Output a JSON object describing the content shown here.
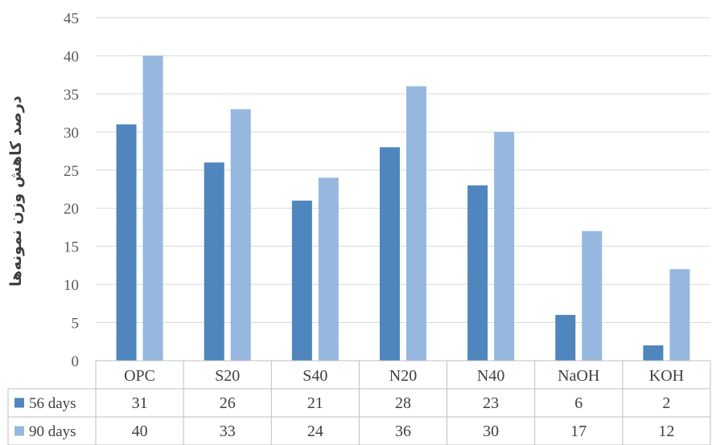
{
  "chart_data": {
    "type": "bar",
    "title": "",
    "xlabel": "",
    "ylabel": "درصد کاهش وزن نمونه‌ها",
    "ylim": [
      0,
      45
    ],
    "yticks": [
      0,
      5,
      10,
      15,
      20,
      25,
      30,
      35,
      40,
      45
    ],
    "grid": true,
    "legend": "data-table",
    "categories": [
      "OPC",
      "S20",
      "S40",
      "N20",
      "N40",
      "NaOH",
      "KOH"
    ],
    "series": [
      {
        "name": "56 days",
        "color": "#4e86bd",
        "values": [
          31,
          26,
          21,
          28,
          23,
          6,
          2
        ]
      },
      {
        "name": "90 days",
        "color": "#96b8df",
        "values": [
          40,
          33,
          24,
          36,
          30,
          17,
          12
        ]
      }
    ]
  }
}
